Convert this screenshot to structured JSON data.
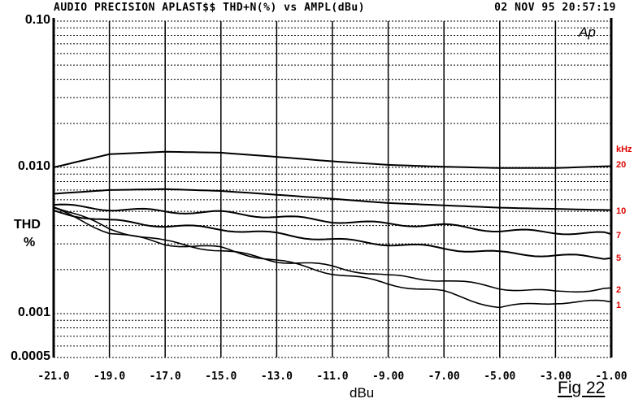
{
  "header": {
    "title": "AUDIO PRECISION APLAST$$ THD+N(%) vs AMPL(dBu)",
    "timestamp": "02 NOV 95 20:57:19"
  },
  "logo": "Ap",
  "figure_label": "Fig 22",
  "y_axis": {
    "title_line1": "THD",
    "title_line2": "%",
    "ticks": [
      "0.10",
      "0.010",
      "0.001",
      "0.0005"
    ]
  },
  "x_axis": {
    "title": "dBu",
    "ticks": [
      "-21.0",
      "-19.0",
      "-17.0",
      "-15.0",
      "-13.0",
      "-11.0",
      "-9.00",
      "-7.00",
      "-5.00",
      "-3.00",
      "-1.00"
    ]
  },
  "legend": {
    "unit": "kHz",
    "labels": [
      "20",
      "10",
      "7",
      "5",
      "2",
      "1"
    ],
    "color": "#e00000"
  },
  "chart_data": {
    "type": "line",
    "title": "AUDIO PRECISION APLAST$$ THD+N(%) vs AMPL(dBu)",
    "xlabel": "dBu",
    "ylabel": "THD %",
    "xlim": [
      -21,
      -1
    ],
    "ylim": [
      0.0005,
      0.1
    ],
    "yscale": "log",
    "grid": true,
    "legend_position": "right",
    "x": [
      -21,
      -19,
      -17,
      -15,
      -13,
      -11,
      -9,
      -7,
      -5,
      -3,
      -1
    ],
    "series": [
      {
        "name": "20 kHz",
        "values": [
          0.01,
          0.0123,
          0.0128,
          0.0126,
          0.0118,
          0.011,
          0.0104,
          0.0101,
          0.0099,
          0.0099,
          0.0102
        ]
      },
      {
        "name": "10 kHz",
        "values": [
          0.0066,
          0.007,
          0.0071,
          0.0069,
          0.0065,
          0.0061,
          0.0057,
          0.0055,
          0.0053,
          0.0052,
          0.0051
        ]
      },
      {
        "name": "7 kHz",
        "values": [
          0.0055,
          0.0052,
          0.005,
          0.0049,
          0.0046,
          0.0043,
          0.0041,
          0.004,
          0.0037,
          0.0036,
          0.0035
        ]
      },
      {
        "name": "5 kHz",
        "values": [
          0.005,
          0.0043,
          0.004,
          0.0038,
          0.0035,
          0.0032,
          0.003,
          0.0028,
          0.0026,
          0.0025,
          0.0024
        ]
      },
      {
        "name": "2 kHz",
        "values": [
          0.0055,
          0.0038,
          0.0031,
          0.0027,
          0.0023,
          0.0021,
          0.0018,
          0.0017,
          0.0015,
          0.0014,
          0.0015
        ]
      },
      {
        "name": "1 kHz",
        "values": [
          0.0052,
          0.0036,
          0.003,
          0.0028,
          0.0023,
          0.0019,
          0.0016,
          0.0014,
          0.0011,
          0.0012,
          0.0012
        ]
      }
    ]
  }
}
